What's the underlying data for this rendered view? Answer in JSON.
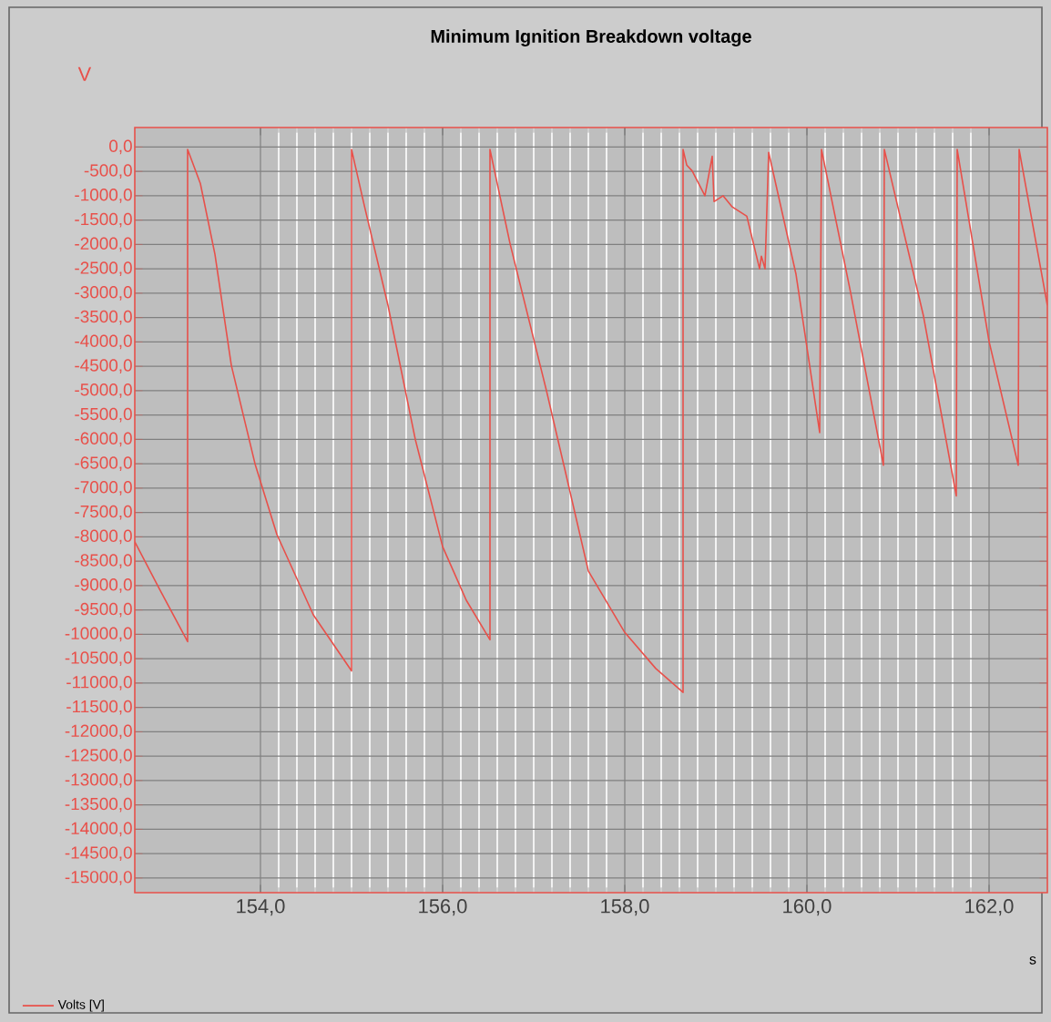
{
  "chart_data": {
    "type": "line",
    "title": "Minimum Ignition Breakdown voltage",
    "xlabel": "s",
    "ylabel": "V",
    "x": [
      152.62,
      152.9,
      153.2,
      153.2,
      153.34,
      153.5,
      153.68,
      153.94,
      154.18,
      154.58,
      155.0,
      155.0,
      155.14,
      155.4,
      155.7,
      156.0,
      156.26,
      156.52,
      156.52,
      156.74,
      157.14,
      157.34,
      157.6,
      158.0,
      158.34,
      158.64,
      158.64,
      158.68,
      158.74,
      158.88,
      158.96,
      158.98,
      159.08,
      159.18,
      159.34,
      159.48,
      159.5,
      159.54,
      159.58,
      159.88,
      160.14,
      160.16,
      160.48,
      160.84,
      160.85,
      161.28,
      161.64,
      161.65,
      162.0,
      162.32,
      162.33,
      162.64
    ],
    "series": [
      {
        "name": "Volts [V]",
        "color": "#e8504a",
        "values": [
          -8100,
          -9100,
          -10150,
          -50,
          -750,
          -2200,
          -4480,
          -6500,
          -7950,
          -9600,
          -10750,
          -50,
          -1200,
          -3250,
          -6000,
          -8200,
          -9300,
          -10110,
          -50,
          -1980,
          -5000,
          -6600,
          -8700,
          -9960,
          -10700,
          -11190,
          -50,
          -370,
          -490,
          -1000,
          -190,
          -1120,
          -1000,
          -1230,
          -1420,
          -2500,
          -2240,
          -2500,
          -110,
          -2610,
          -5860,
          -50,
          -2990,
          -6530,
          -50,
          -3470,
          -7160,
          -50,
          -3990,
          -6530,
          -50,
          -3250
        ]
      }
    ],
    "xlim": [
      152.62,
      162.64
    ],
    "ylim": [
      -15300,
      400
    ],
    "xticks": [
      {
        "value": 154,
        "label": "154,0"
      },
      {
        "value": 156,
        "label": "156,0"
      },
      {
        "value": 158,
        "label": "158,0"
      },
      {
        "value": 160,
        "label": "160,0"
      },
      {
        "value": 162,
        "label": "162,0"
      }
    ],
    "yticks": [
      {
        "value": 0,
        "label": "0,0"
      },
      {
        "value": -500,
        "label": "-500,0"
      },
      {
        "value": -1000,
        "label": "-1000,0"
      },
      {
        "value": -1500,
        "label": "-1500,0"
      },
      {
        "value": -2000,
        "label": "-2000,0"
      },
      {
        "value": -2500,
        "label": "-2500,0"
      },
      {
        "value": -3000,
        "label": "-3000,0"
      },
      {
        "value": -3500,
        "label": "-3500,0"
      },
      {
        "value": -4000,
        "label": "-4000,0"
      },
      {
        "value": -4500,
        "label": "-4500,0"
      },
      {
        "value": -5000,
        "label": "-5000,0"
      },
      {
        "value": -5500,
        "label": "-5500,0"
      },
      {
        "value": -6000,
        "label": "-6000,0"
      },
      {
        "value": -6500,
        "label": "-6500,0"
      },
      {
        "value": -7000,
        "label": "-7000,0"
      },
      {
        "value": -7500,
        "label": "-7500,0"
      },
      {
        "value": -8000,
        "label": "-8000,0"
      },
      {
        "value": -8500,
        "label": "-8500,0"
      },
      {
        "value": -9000,
        "label": "-9000,0"
      },
      {
        "value": -9500,
        "label": "-9500,0"
      },
      {
        "value": -10000,
        "label": "-10000,0"
      },
      {
        "value": -10500,
        "label": "-10500,0"
      },
      {
        "value": -11000,
        "label": "-11000,0"
      },
      {
        "value": -11500,
        "label": "-11500,0"
      },
      {
        "value": -12000,
        "label": "-12000,0"
      },
      {
        "value": -12500,
        "label": "-12500,0"
      },
      {
        "value": -13000,
        "label": "-13000,0"
      },
      {
        "value": -13500,
        "label": "-13500,0"
      },
      {
        "value": -14000,
        "label": "-14000,0"
      },
      {
        "value": -14500,
        "label": "-14500,0"
      },
      {
        "value": -15000,
        "label": "-15000,0"
      }
    ],
    "grid": true,
    "legend": "bottom left"
  }
}
